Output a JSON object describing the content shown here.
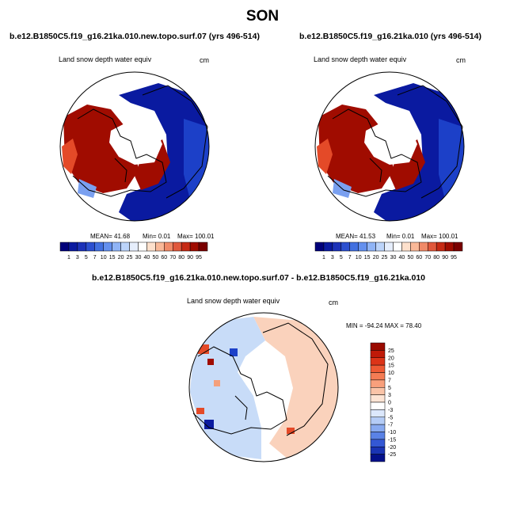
{
  "page": {
    "title": "SON"
  },
  "colors": {
    "deep_blue": "#0a1aa0",
    "blue": "#1c40c8",
    "mid_blue": "#3c6ae0",
    "light_blue": "#7aa0f0",
    "pale_blue": "#c8dcf8",
    "white": "#ffffff",
    "pale_red": "#fad2bc",
    "light_red": "#f4a07c",
    "red": "#e44a28",
    "dark_red": "#a00c00",
    "land_line": "#000000"
  },
  "chart_data": [
    {
      "type": "heatmap",
      "projection": "polar-stereographic",
      "run_title": "b.e12.B1850C5.f19_g16.21ka.010.new.topo.surf.07 (yrs 496-514)",
      "variable": "Land snow depth water equiv",
      "units": "cm",
      "stats": {
        "mean": "41.68",
        "min": "0.01",
        "max": "100.01"
      },
      "stats_text": {
        "mean": "MEAN=  41.68",
        "min": "Min=   0.01",
        "max": "Max= 100.01"
      },
      "colorbar_levels": [
        "1",
        "3",
        "5",
        "7",
        "10",
        "15",
        "20",
        "25",
        "30",
        "40",
        "50",
        "60",
        "70",
        "80",
        "90",
        "95"
      ],
      "colorbar_colors": [
        "#00007a",
        "#0a1aa0",
        "#1c32b8",
        "#2c50d0",
        "#4270e0",
        "#6490ee",
        "#90b4f6",
        "#bcd4fa",
        "#e6eefc",
        "#ffffff",
        "#fde0cc",
        "#f9b898",
        "#f08a68",
        "#e0583c",
        "#c62a14",
        "#a00c00",
        "#7a0000"
      ]
    },
    {
      "type": "heatmap",
      "projection": "polar-stereographic",
      "run_title": "b.e12.B1850C5.f19_g16.21ka.010 (yrs 496-514)",
      "variable": "Land snow depth water equiv",
      "units": "cm",
      "stats": {
        "mean": "41.53",
        "min": "0.01",
        "max": "100.01"
      },
      "stats_text": {
        "mean": "MEAN=  41.53",
        "min": "Min=   0.01",
        "max": "Max= 100.01"
      },
      "colorbar_levels": [
        "1",
        "3",
        "5",
        "7",
        "10",
        "15",
        "20",
        "25",
        "30",
        "40",
        "50",
        "60",
        "70",
        "80",
        "90",
        "95"
      ],
      "colorbar_colors": [
        "#00007a",
        "#0a1aa0",
        "#1c32b8",
        "#2c50d0",
        "#4270e0",
        "#6490ee",
        "#90b4f6",
        "#bcd4fa",
        "#e6eefc",
        "#ffffff",
        "#fde0cc",
        "#f9b898",
        "#f08a68",
        "#e0583c",
        "#c62a14",
        "#a00c00",
        "#7a0000"
      ]
    },
    {
      "type": "heatmap",
      "projection": "polar-stereographic",
      "run_title": "b.e12.B1850C5.f19_g16.21ka.010.new.topo.surf.07 - b.e12.B1850C5.f19_g16.21ka.010",
      "variable": "Land snow depth water equiv",
      "units": "cm",
      "stats": {
        "min": "-94.24",
        "max": "78.40"
      },
      "stats_text": "MIN = -94.24  MAX =  78.40",
      "colorbar_levels": [
        "25",
        "20",
        "15",
        "10",
        "7",
        "5",
        "3",
        "0",
        "-3",
        "-5",
        "-7",
        "-10",
        "-15",
        "-20",
        "-25"
      ],
      "colorbar_colors": [
        "#9a0a00",
        "#c01a08",
        "#dc3418",
        "#ee5a34",
        "#f47c54",
        "#f8a07c",
        "#fac4a8",
        "#fde4d4",
        "#ffffff",
        "#dce8fc",
        "#b4ccf6",
        "#88aaf0",
        "#5a82e6",
        "#3458d4",
        "#1a34b4",
        "#04108a"
      ]
    }
  ]
}
